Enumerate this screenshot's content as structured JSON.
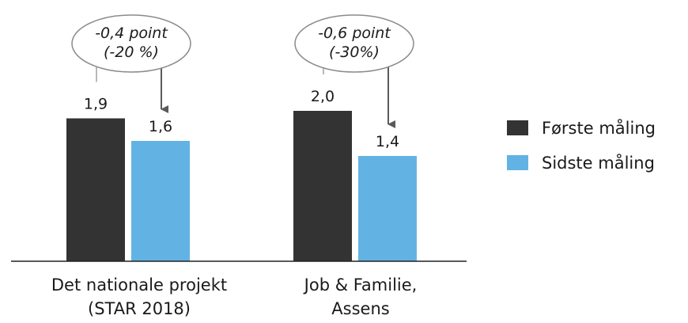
{
  "chart_data": {
    "type": "bar",
    "categories": [
      [
        "Det nationale projekt",
        "(STAR 2018)"
      ],
      [
        "Job & Familie,",
        "Assens"
      ]
    ],
    "series": [
      {
        "name": "Første måling",
        "values": [
          1.9,
          2.0
        ],
        "labels": [
          "1,9",
          "2,0"
        ],
        "color": "#333333"
      },
      {
        "name": "Sidste måling",
        "values": [
          1.6,
          1.4
        ],
        "labels": [
          "1,6",
          "1,4"
        ],
        "color": "#62b3e4"
      }
    ],
    "annotations": [
      {
        "category": 0,
        "lines": [
          "-0,4 point",
          "(-20 %)"
        ]
      },
      {
        "category": 1,
        "lines": [
          "-0,6 point",
          "(-30%)"
        ]
      }
    ],
    "ylim": [
      0,
      2.0
    ],
    "grid": false,
    "legend_position": "right",
    "title": "",
    "xlabel": "",
    "ylabel": ""
  }
}
